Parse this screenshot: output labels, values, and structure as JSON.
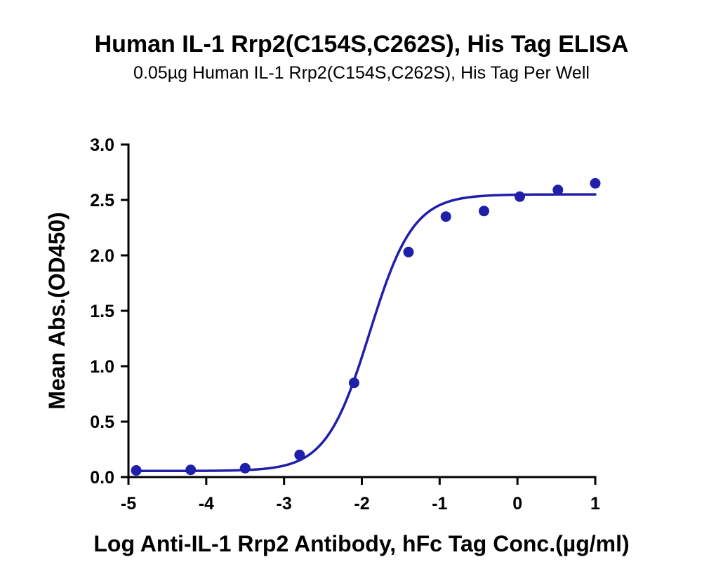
{
  "chart_data": {
    "type": "scatter",
    "title": "Human IL-1 Rrp2(C154S,C262S), His Tag ELISA",
    "subtitle": "0.05µg Human IL-1 Rrp2(C154S,C262S), His Tag Per Well",
    "xlabel": "Log Anti-IL-1 Rrp2 Antibody, hFc Tag Conc.(µg/ml)",
    "ylabel": "Mean Abs.(OD450)",
    "xlim": [
      -5,
      1
    ],
    "ylim": [
      0,
      3.0
    ],
    "x_ticks": [
      "-5",
      "-4",
      "-3",
      "-2",
      "-1",
      "0",
      "1"
    ],
    "y_ticks": [
      "0.0",
      "0.5",
      "1.0",
      "1.5",
      "2.0",
      "2.5",
      "3.0"
    ],
    "grid": false,
    "legend": "none",
    "series": [
      {
        "color": "#1f1faa",
        "points": [
          {
            "x": -4.9,
            "y": 0.06
          },
          {
            "x": -4.2,
            "y": 0.065
          },
          {
            "x": -3.5,
            "y": 0.08
          },
          {
            "x": -2.8,
            "y": 0.2
          },
          {
            "x": -2.1,
            "y": 0.85
          },
          {
            "x": -1.4,
            "y": 2.03
          },
          {
            "x": -0.92,
            "y": 2.35
          },
          {
            "x": -0.43,
            "y": 2.4
          },
          {
            "x": 0.03,
            "y": 2.53
          },
          {
            "x": 0.52,
            "y": 2.59
          },
          {
            "x": 1.0,
            "y": 2.65
          }
        ],
        "fit": {
          "model": "4PL",
          "bottom": 0.055,
          "top": 2.55,
          "log_ec50": -1.9,
          "hill_slope": 1.55,
          "x_range": [
            -4.9,
            1.0
          ]
        }
      }
    ]
  }
}
